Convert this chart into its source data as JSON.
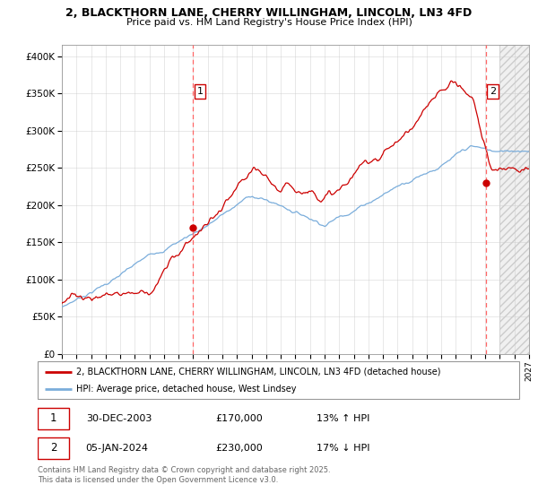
{
  "title": "2, BLACKTHORN LANE, CHERRY WILLINGHAM, LINCOLN, LN3 4FD",
  "subtitle": "Price paid vs. HM Land Registry's House Price Index (HPI)",
  "ylabel_ticks": [
    "£0",
    "£50K",
    "£100K",
    "£150K",
    "£200K",
    "£250K",
    "£300K",
    "£350K",
    "£400K"
  ],
  "ytick_values": [
    0,
    50000,
    100000,
    150000,
    200000,
    250000,
    300000,
    350000,
    400000
  ],
  "ylim": [
    0,
    415000
  ],
  "xlim_start": 1995.0,
  "xlim_end": 2027.0,
  "legend_line1": "2, BLACKTHORN LANE, CHERRY WILLINGHAM, LINCOLN, LN3 4FD (detached house)",
  "legend_line2": "HPI: Average price, detached house, West Lindsey",
  "transaction1_date": "30-DEC-2003",
  "transaction1_price": "£170,000",
  "transaction1_hpi": "13% ↑ HPI",
  "transaction2_date": "05-JAN-2024",
  "transaction2_price": "£230,000",
  "transaction2_hpi": "17% ↓ HPI",
  "footnote": "Contains HM Land Registry data © Crown copyright and database right 2025.\nThis data is licensed under the Open Government Licence v3.0.",
  "line_color_property": "#cc0000",
  "line_color_hpi": "#7aaddb",
  "transaction1_x": 2004.0,
  "transaction1_y": 170000,
  "transaction2_x": 2024.04,
  "transaction2_y": 230000,
  "hatch_start": 2025.0,
  "background_color": "#ffffff",
  "grid_color": "#cccccc"
}
